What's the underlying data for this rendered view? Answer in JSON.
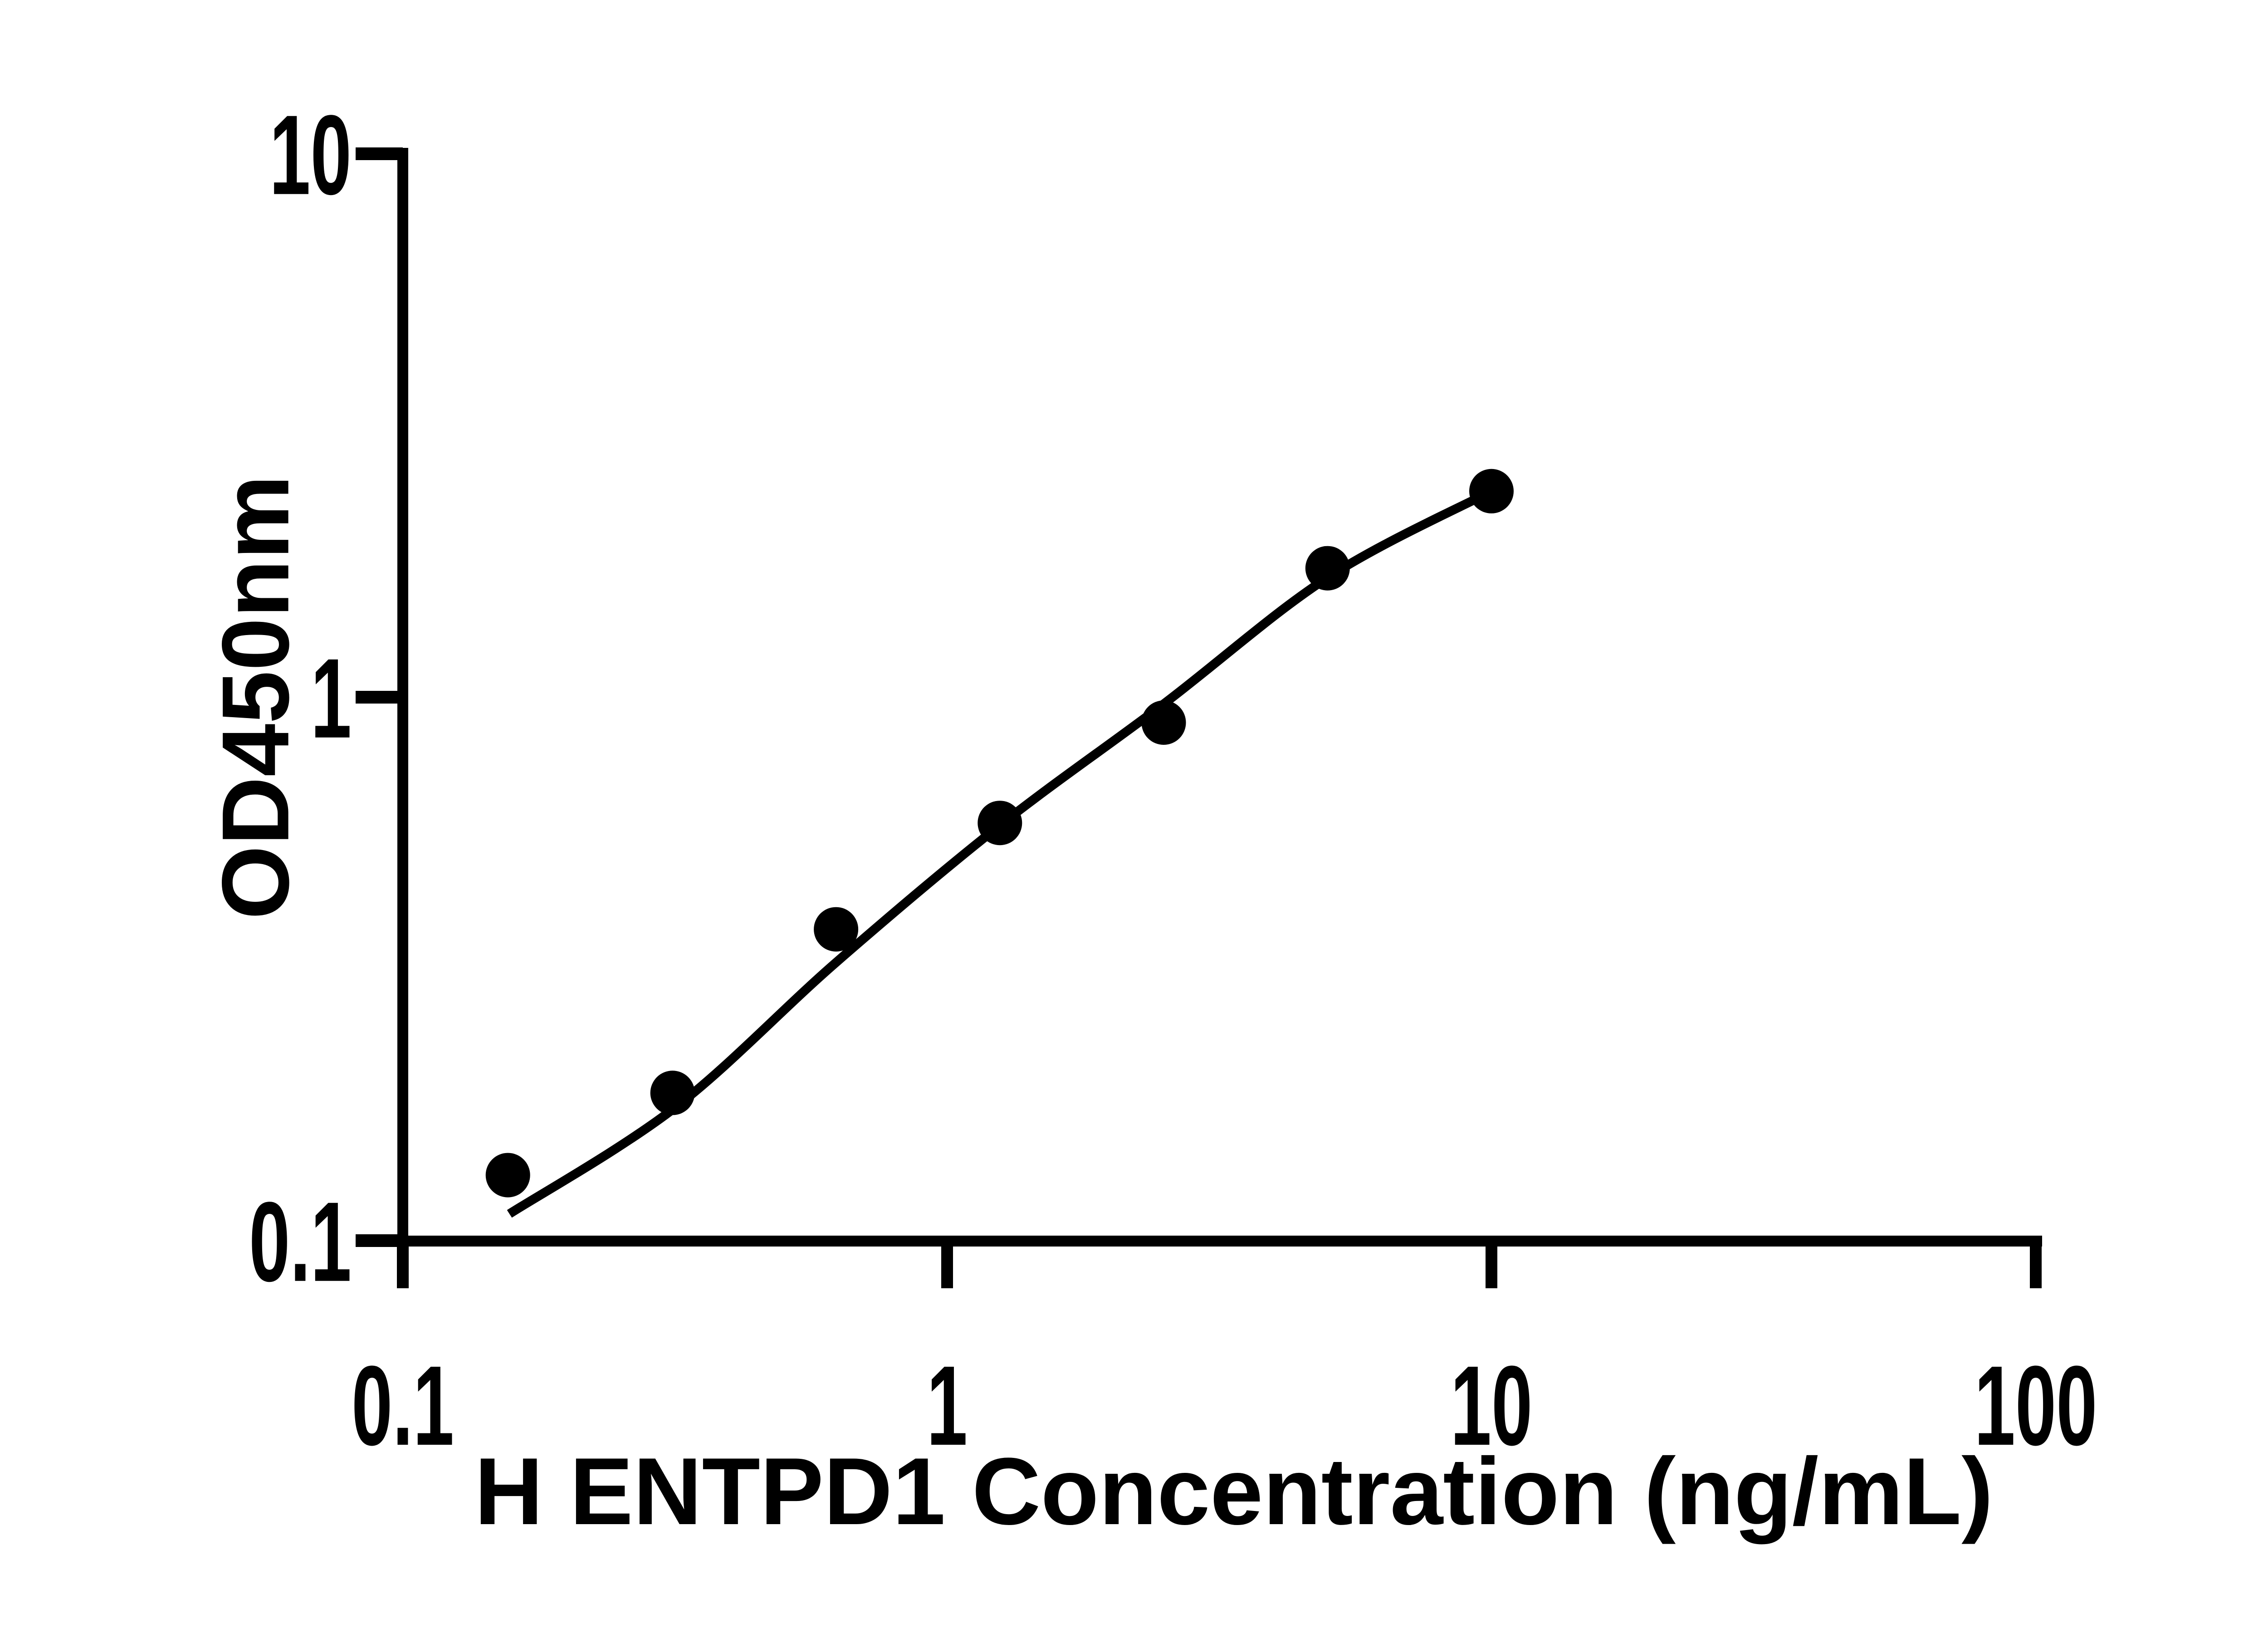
{
  "page": {
    "background": "#ffffff",
    "ink_color": "#000000"
  },
  "chart_data": {
    "type": "scatter",
    "title": "",
    "xlabel": "H ENTPD1 Concentration (ng/mL)",
    "ylabel": "OD450nm",
    "x_scale": "log10",
    "y_scale": "log10",
    "xlim": [
      0.1,
      100
    ],
    "ylim": [
      0.1,
      10
    ],
    "grid": false,
    "legend_position": "none",
    "axis_color": "#000000",
    "x_ticks": [
      {
        "value": 0.1,
        "label": "0.1"
      },
      {
        "value": 1,
        "label": "1"
      },
      {
        "value": 10,
        "label": "10"
      },
      {
        "value": 100,
        "label": "100"
      }
    ],
    "y_ticks": [
      {
        "value": 10,
        "label": "10"
      },
      {
        "value": 1,
        "label": "1"
      },
      {
        "value": 0.1,
        "label": "0.1"
      }
    ],
    "series": [
      {
        "name": "standard-points",
        "type": "scatter",
        "marker": "filled-circle",
        "color": "#000000",
        "points": [
          {
            "x": 0.156,
            "y": 0.132
          },
          {
            "x": 0.313,
            "y": 0.187
          },
          {
            "x": 0.625,
            "y": 0.374
          },
          {
            "x": 1.25,
            "y": 0.587
          },
          {
            "x": 2.5,
            "y": 0.898
          },
          {
            "x": 5,
            "y": 1.727
          },
          {
            "x": 10,
            "y": 2.394
          }
        ]
      },
      {
        "name": "fit-curve",
        "type": "line",
        "color": "#000000",
        "points": [
          {
            "x": 0.157,
            "y": 0.112
          },
          {
            "x": 0.317,
            "y": 0.176
          },
          {
            "x": 0.625,
            "y": 0.325
          },
          {
            "x": 1.25,
            "y": 0.581
          },
          {
            "x": 2.5,
            "y": 0.972
          },
          {
            "x": 5,
            "y": 1.66
          },
          {
            "x": 10,
            "y": 2.394
          }
        ]
      }
    ]
  }
}
